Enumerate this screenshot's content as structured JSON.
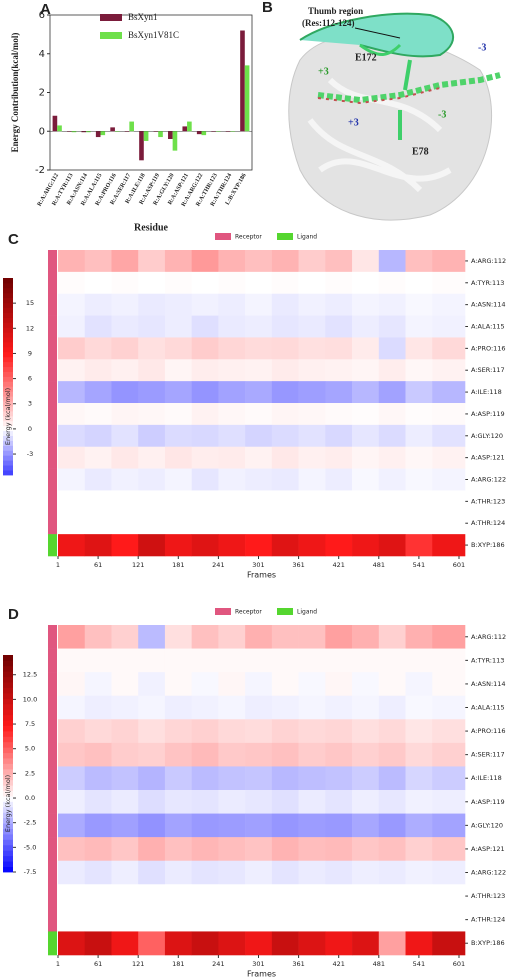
{
  "chart_data": [
    {
      "type": "bar",
      "panel": "A",
      "ylabel": "Energy Contribution(kcal/mol)",
      "xlabel": "Residue",
      "categories": [
        "R:A:ARG:112",
        "R:A:TYR:113",
        "R:A:ASN:114",
        "R:A:ALA:115",
        "R:A:PRO:116",
        "R:A:SER:117",
        "R:A:ILE:118",
        "R:A:ASP:119",
        "R:A:GLY:120",
        "R:A:ASP:121",
        "R:A:ARG:122",
        "R:A:THR:123",
        "R:A:THR:124",
        "L:B:XYP:186"
      ],
      "series": [
        {
          "name": "BsXyn1",
          "color": "#7b1c3b",
          "values": [
            0.8,
            0.0,
            -0.05,
            -0.3,
            0.2,
            0.0,
            -1.5,
            0.0,
            -0.4,
            0.25,
            -0.15,
            0.0,
            0.0,
            5.2
          ]
        },
        {
          "name": "BsXyn1V81C",
          "color": "#6ee04a",
          "values": [
            0.3,
            -0.05,
            -0.05,
            -0.2,
            0.0,
            0.5,
            -0.5,
            -0.3,
            -1.0,
            0.5,
            -0.2,
            0.0,
            0.0,
            3.4
          ]
        }
      ],
      "ylim": [
        -2,
        6
      ],
      "yticks": [
        -2,
        0,
        2,
        4,
        6
      ]
    },
    {
      "type": "heatmap",
      "panel": "C",
      "zlabel": "Energy (kcal/mol)",
      "xlabel": "Frames",
      "legend": [
        {
          "name": "Receptor",
          "color": "#e0567f"
        },
        {
          "name": "Ligand",
          "color": "#55d62f"
        }
      ],
      "rows": [
        "A:ARG:112",
        "A:TYR:113",
        "A:ASN:114",
        "A:ALA:115",
        "A:PRO:116",
        "A:SER:117",
        "A:ILE:118",
        "A:ASP:119",
        "A:GLY:120",
        "A:ASP:121",
        "A:ARG:122",
        "A:THR:123",
        "A:THR:124",
        "B:XYP:186"
      ],
      "row_group": [
        0,
        0,
        0,
        0,
        0,
        0,
        0,
        0,
        0,
        0,
        0,
        0,
        0,
        1
      ],
      "x": [
        1,
        41,
        81,
        121,
        161,
        201,
        241,
        281,
        321,
        361,
        401,
        441,
        481,
        521,
        561
      ],
      "xlim": [
        1,
        610
      ],
      "xticks": [
        1,
        61,
        121,
        181,
        241,
        301,
        361,
        421,
        481,
        541,
        601
      ],
      "zlim": [
        -5.5,
        18
      ],
      "zticks": [
        -3,
        0,
        3,
        6,
        9,
        12,
        15
      ],
      "colormap": [
        "#3a3aff",
        "#ffffff",
        "#ff1a1a",
        "#6e0000"
      ],
      "values": [
        [
          3,
          2.5,
          3.5,
          2,
          3,
          4,
          3,
          2.5,
          3,
          2,
          2.5,
          1,
          -2,
          2.5,
          3
        ],
        [
          0.1,
          0,
          0.1,
          0,
          0.1,
          0,
          0.1,
          0,
          0.1,
          0,
          0.1,
          0,
          0.1,
          0,
          0.1
        ],
        [
          -0.3,
          -0.5,
          -0.4,
          -0.6,
          -0.5,
          -0.4,
          -0.5,
          -0.3,
          -0.6,
          -0.4,
          -0.5,
          -0.3,
          -0.4,
          -0.2,
          -0.3
        ],
        [
          -0.4,
          -0.8,
          -0.6,
          -0.7,
          -0.5,
          -0.9,
          -0.6,
          -0.5,
          -0.7,
          -0.6,
          -0.8,
          -0.5,
          -0.7,
          -0.3,
          -0.4
        ],
        [
          2,
          1.5,
          1.8,
          1.2,
          1.5,
          2,
          1.6,
          1.4,
          1.5,
          1.2,
          1.3,
          0.8,
          -1,
          1,
          1.5
        ],
        [
          0.5,
          0.8,
          0.6,
          0.9,
          0.4,
          0.7,
          0.6,
          0.5,
          0.8,
          0.6,
          0.5,
          0.4,
          0.7,
          0.3,
          0.5
        ],
        [
          -2,
          -2.5,
          -3,
          -2.8,
          -2.5,
          -3,
          -2.6,
          -2.4,
          -2.9,
          -2.7,
          -2.5,
          -2,
          -2.6,
          -1.5,
          -2
        ],
        [
          0.3,
          0.2,
          0.4,
          0.3,
          0.2,
          0.5,
          0.3,
          0.2,
          0.4,
          0.3,
          0.2,
          0.1,
          0.3,
          0.1,
          0.2
        ],
        [
          -1,
          -1.2,
          -0.8,
          -1.4,
          -1,
          -1.1,
          -0.9,
          -1.2,
          -1,
          -0.8,
          -1.1,
          -0.7,
          -1,
          -0.5,
          -0.8
        ],
        [
          0.8,
          0.5,
          0.9,
          0.6,
          1,
          0.7,
          0.8,
          0.5,
          0.9,
          0.6,
          0.7,
          0.4,
          0.6,
          0.3,
          0.5
        ],
        [
          -0.3,
          -0.6,
          -0.4,
          -0.5,
          -0.3,
          -0.7,
          -0.4,
          -0.5,
          -0.6,
          -0.3,
          -0.5,
          -0.2,
          -0.4,
          -0.2,
          -0.3
        ],
        [
          0,
          0,
          0,
          0,
          0,
          0,
          0,
          0,
          0,
          0,
          0,
          0,
          0,
          0,
          0
        ],
        [
          0,
          0,
          0,
          0,
          0,
          0,
          0,
          0,
          0,
          0,
          0,
          0,
          0,
          0,
          0
        ],
        [
          10,
          11,
          9,
          12,
          10,
          11,
          10,
          9,
          11,
          10,
          9,
          10,
          11,
          8,
          10
        ]
      ]
    },
    {
      "type": "heatmap",
      "panel": "D",
      "zlabel": "Energy (kcal/mol)",
      "xlabel": "Frames",
      "legend": [
        {
          "name": "Receptor",
          "color": "#e0567f"
        },
        {
          "name": "Ligand",
          "color": "#55d62f"
        }
      ],
      "rows": [
        "A:ARG:112",
        "A:TYR:113",
        "A:ASN:114",
        "A:ALA:115",
        "A:PRO:116",
        "A:SER:117",
        "A:ILE:118",
        "A:ASP:119",
        "A:GLY:120",
        "A:ASP:121",
        "A:ARG:122",
        "A:THR:123",
        "A:THR:124",
        "B:XYP:186"
      ],
      "row_group": [
        0,
        0,
        0,
        0,
        0,
        0,
        0,
        0,
        0,
        0,
        0,
        0,
        0,
        1
      ],
      "x": [
        1,
        41,
        81,
        121,
        161,
        201,
        241,
        281,
        321,
        361,
        401,
        441,
        481,
        521,
        561
      ],
      "xlim": [
        1,
        610
      ],
      "xticks": [
        1,
        61,
        121,
        181,
        241,
        301,
        361,
        421,
        481,
        541,
        601
      ],
      "zlim": [
        -7.5,
        14.5
      ],
      "zticks": [
        -7.5,
        {
          "value": -5,
          "label": "-5.0"
        },
        -2.5,
        {
          "value": 0,
          "label": "0.0"
        },
        2.5,
        {
          "value": 5,
          "label": "5.0"
        },
        7.5,
        {
          "value": 10,
          "label": "10.0"
        },
        12.5
      ],
      "colormap": [
        "#0000ff",
        "#ffffff",
        "#ff1a1a",
        "#6e0000"
      ],
      "values": [
        [
          3,
          2,
          1.5,
          -2,
          1,
          2,
          1.5,
          2.5,
          2,
          2,
          3,
          2.5,
          1.5,
          2.5,
          3
        ],
        [
          0.2,
          0.2,
          0.2,
          0.2,
          0.2,
          0.2,
          0.2,
          0.2,
          0.2,
          0.2,
          0.2,
          0.2,
          0.2,
          0.2,
          0.2
        ],
        [
          0.3,
          -0.3,
          0.2,
          -0.4,
          0.2,
          -0.2,
          0.3,
          -0.3,
          0.2,
          -0.2,
          0.3,
          -0.2,
          0.2,
          -0.3,
          0.2
        ],
        [
          -0.3,
          -0.5,
          -0.4,
          -0.3,
          -0.5,
          -0.4,
          -0.3,
          -0.5,
          -0.4,
          -0.3,
          -0.4,
          -0.3,
          -0.5,
          -0.2,
          -0.3
        ],
        [
          1.5,
          1.2,
          1.4,
          1,
          1.3,
          1.5,
          1.2,
          1.1,
          1.4,
          1.2,
          1.3,
          1,
          1.2,
          0.8,
          1
        ],
        [
          1.8,
          2,
          1.6,
          1.5,
          1.9,
          2.2,
          1.7,
          1.8,
          2,
          1.6,
          1.8,
          1.5,
          1.7,
          1.2,
          1.5
        ],
        [
          -1.5,
          -2,
          -1.8,
          -2.2,
          -1.6,
          -2,
          -1.8,
          -1.7,
          -2.1,
          -1.9,
          -1.8,
          -1.5,
          -2,
          -1.2,
          -1.5
        ],
        [
          -0.5,
          -0.8,
          -0.6,
          -1,
          -0.7,
          -0.8,
          -0.6,
          -0.7,
          -0.9,
          -0.6,
          -0.8,
          -0.5,
          -0.7,
          -0.4,
          -0.5
        ],
        [
          -2.5,
          -3,
          -2.8,
          -3.2,
          -2.7,
          -3,
          -2.9,
          -2.8,
          -3.1,
          -2.9,
          -3,
          -2.6,
          -3,
          -2.4,
          -2.7
        ],
        [
          2,
          2.2,
          1.8,
          2.5,
          2,
          2.3,
          2.1,
          1.9,
          2.4,
          2.1,
          2.2,
          1.8,
          2,
          1.5,
          1.8
        ],
        [
          -0.6,
          -0.8,
          -0.5,
          -0.9,
          -0.6,
          -0.8,
          -0.7,
          -0.5,
          -0.8,
          -0.6,
          -0.7,
          -0.5,
          -0.6,
          -0.4,
          -0.5
        ],
        [
          0,
          0,
          0,
          0,
          0,
          0,
          0,
          0,
          0,
          0,
          0,
          0,
          0,
          0,
          0
        ],
        [
          0,
          0,
          0,
          0,
          0,
          0,
          0,
          0,
          0,
          0,
          0,
          0,
          0,
          0,
          0
        ],
        [
          9,
          10,
          8,
          5,
          9,
          10,
          9,
          8,
          10,
          9,
          8,
          9,
          3,
          8,
          10
        ]
      ]
    }
  ],
  "panel_b": {
    "panel": "B",
    "thumb": [
      "Thumb region",
      "(Res:112-124)"
    ],
    "e172": "E172",
    "e78": "E78",
    "plus3_left": "+3",
    "plus3_mid": "+3",
    "minus3_mid": "-3",
    "minus3_right": "-3"
  }
}
